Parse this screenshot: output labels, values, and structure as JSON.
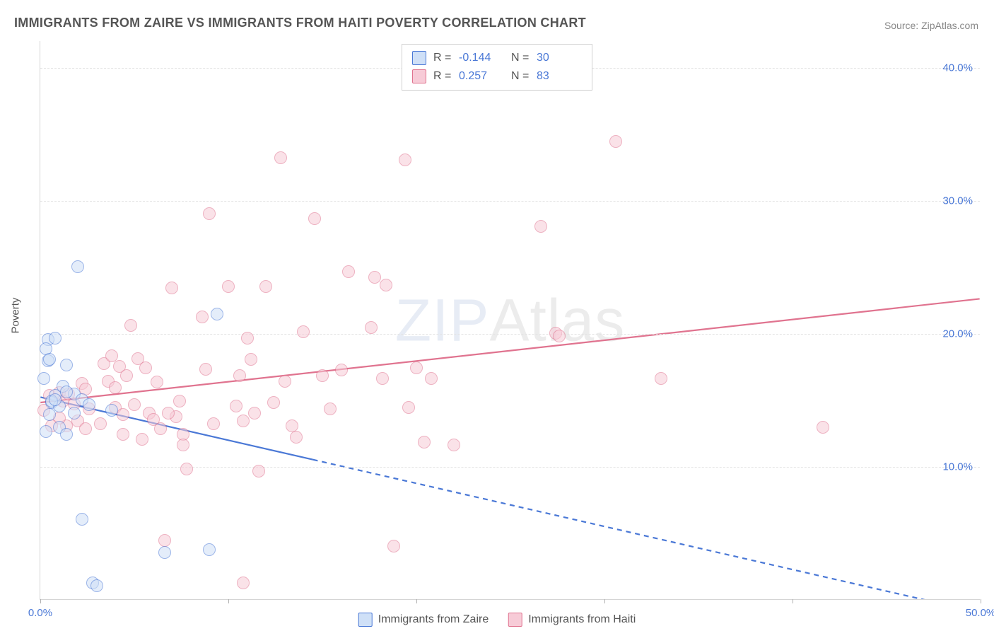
{
  "title": "IMMIGRANTS FROM ZAIRE VS IMMIGRANTS FROM HAITI POVERTY CORRELATION CHART",
  "source_label": "Source: ",
  "source_name": "ZipAtlas.com",
  "ylabel": "Poverty",
  "watermark_a": "ZIP",
  "watermark_b": "Atlas",
  "chart": {
    "type": "scatter",
    "background_color": "#ffffff",
    "grid_color": "#e3e3e3",
    "axis_color": "#d5d5d5",
    "tick_label_color": "#4a78d6",
    "xlim": [
      0,
      50
    ],
    "ylim": [
      0,
      42
    ],
    "yticks": [
      10,
      20,
      30,
      40
    ],
    "ytick_labels": [
      "10.0%",
      "20.0%",
      "30.0%",
      "40.0%"
    ],
    "xticks": [
      0,
      10,
      20,
      30,
      40,
      50
    ],
    "xtick_labels": [
      "0.0%",
      "",
      "",
      "",
      "",
      "50.0%"
    ],
    "marker_radius": 9,
    "marker_border_width": 1.4,
    "line_width": 2.2
  },
  "series": {
    "zaire": {
      "label": "Immigrants from Zaire",
      "fill": "#cfe0f7",
      "stroke": "#4a78d6",
      "fill_alpha": 0.55,
      "r_value": "-0.144",
      "n_value": "30",
      "trend": {
        "x1": 0,
        "y1": 15.2,
        "x2": 50,
        "y2": -1.0,
        "solid_until_x": 14.5
      },
      "points": [
        [
          0.4,
          19.5
        ],
        [
          0.3,
          18.8
        ],
        [
          0.4,
          17.9
        ],
        [
          0.2,
          16.6
        ],
        [
          0.5,
          18.0
        ],
        [
          0.8,
          15.3
        ],
        [
          0.6,
          14.8
        ],
        [
          1.0,
          14.5
        ],
        [
          0.5,
          13.9
        ],
        [
          0.3,
          12.6
        ],
        [
          2.0,
          25.0
        ],
        [
          0.8,
          19.6
        ],
        [
          1.4,
          17.6
        ],
        [
          1.8,
          15.4
        ],
        [
          2.2,
          15.0
        ],
        [
          2.6,
          14.6
        ],
        [
          1.0,
          12.9
        ],
        [
          1.4,
          12.4
        ],
        [
          2.2,
          6.0
        ],
        [
          2.8,
          1.2
        ],
        [
          0.6,
          14.9
        ],
        [
          0.8,
          15.0
        ],
        [
          1.2,
          16.0
        ],
        [
          1.4,
          15.6
        ],
        [
          1.8,
          14.0
        ],
        [
          9.4,
          21.4
        ],
        [
          9.0,
          3.7
        ],
        [
          6.6,
          3.5
        ],
        [
          3.0,
          1.0
        ],
        [
          3.8,
          14.2
        ]
      ]
    },
    "haiti": {
      "label": "Immigrants from Haiti",
      "fill": "#f7cbd7",
      "stroke": "#e0738f",
      "fill_alpha": 0.55,
      "r_value": "0.257",
      "n_value": "83",
      "trend": {
        "x1": 0,
        "y1": 14.8,
        "x2": 50,
        "y2": 22.6
      },
      "points": [
        [
          0.5,
          15.3
        ],
        [
          0.2,
          14.2
        ],
        [
          1.0,
          15.5
        ],
        [
          1.2,
          14.9
        ],
        [
          1.5,
          15.4
        ],
        [
          1.8,
          14.7
        ],
        [
          2.2,
          16.2
        ],
        [
          2.4,
          15.8
        ],
        [
          2.6,
          14.3
        ],
        [
          3.4,
          17.7
        ],
        [
          3.6,
          16.4
        ],
        [
          3.8,
          18.3
        ],
        [
          4.0,
          15.9
        ],
        [
          4.0,
          14.4
        ],
        [
          4.2,
          17.5
        ],
        [
          4.4,
          13.9
        ],
        [
          4.6,
          16.8
        ],
        [
          4.8,
          20.6
        ],
        [
          5.0,
          14.6
        ],
        [
          5.2,
          18.1
        ],
        [
          5.6,
          17.4
        ],
        [
          5.8,
          14.0
        ],
        [
          6.0,
          13.5
        ],
        [
          6.2,
          16.3
        ],
        [
          6.4,
          12.8
        ],
        [
          6.6,
          4.4
        ],
        [
          7.0,
          23.4
        ],
        [
          7.2,
          13.7
        ],
        [
          7.4,
          14.9
        ],
        [
          7.6,
          12.4
        ],
        [
          7.8,
          9.8
        ],
        [
          8.6,
          21.2
        ],
        [
          8.8,
          17.3
        ],
        [
          9.0,
          29.0
        ],
        [
          9.2,
          13.2
        ],
        [
          10.0,
          23.5
        ],
        [
          10.4,
          14.5
        ],
        [
          10.6,
          16.8
        ],
        [
          10.8,
          13.4
        ],
        [
          10.8,
          1.2
        ],
        [
          11.0,
          19.6
        ],
        [
          11.2,
          18.0
        ],
        [
          11.4,
          14.0
        ],
        [
          11.6,
          9.6
        ],
        [
          12.0,
          23.5
        ],
        [
          12.4,
          14.8
        ],
        [
          12.8,
          33.2
        ],
        [
          13.0,
          16.4
        ],
        [
          13.4,
          13.0
        ],
        [
          14.0,
          20.1
        ],
        [
          14.6,
          28.6
        ],
        [
          15.0,
          16.8
        ],
        [
          15.4,
          14.3
        ],
        [
          16.0,
          17.2
        ],
        [
          16.4,
          24.6
        ],
        [
          17.6,
          20.4
        ],
        [
          17.8,
          24.2
        ],
        [
          18.2,
          16.6
        ],
        [
          18.4,
          23.6
        ],
        [
          18.8,
          4.0
        ],
        [
          19.4,
          33.0
        ],
        [
          19.6,
          14.4
        ],
        [
          20.0,
          17.4
        ],
        [
          20.4,
          11.8
        ],
        [
          20.8,
          16.6
        ],
        [
          22.0,
          11.6
        ],
        [
          26.6,
          28.0
        ],
        [
          27.4,
          20.0
        ],
        [
          27.6,
          19.8
        ],
        [
          30.6,
          34.4
        ],
        [
          33.0,
          16.6
        ],
        [
          41.6,
          12.9
        ],
        [
          6.8,
          14.0
        ],
        [
          2.0,
          13.4
        ],
        [
          2.4,
          12.8
        ],
        [
          3.2,
          13.2
        ],
        [
          4.4,
          12.4
        ],
        [
          5.4,
          12.0
        ],
        [
          7.6,
          11.6
        ],
        [
          13.6,
          12.2
        ],
        [
          1.4,
          13.0
        ],
        [
          1.0,
          13.6
        ],
        [
          0.6,
          13.0
        ]
      ]
    }
  },
  "legend_top": {
    "r_label": "R =",
    "n_label": "N ="
  }
}
